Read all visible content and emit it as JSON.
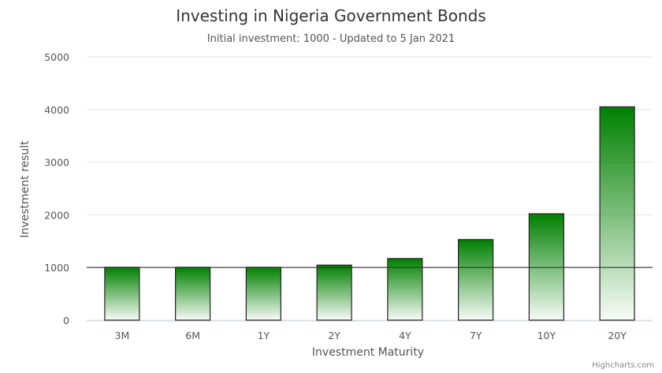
{
  "chart_data": {
    "type": "bar",
    "title": "Investing in Nigeria Government Bonds",
    "subtitle": "Initial investment: 1000 - Updated to 5 Jan 2021",
    "xlabel": "Investment Maturity",
    "ylabel": "Investment result",
    "categories": [
      "3M",
      "6M",
      "1Y",
      "2Y",
      "4Y",
      "7Y",
      "10Y",
      "20Y"
    ],
    "values": [
      1005,
      1005,
      1005,
      1045,
      1170,
      1530,
      2020,
      4050
    ],
    "ylim": [
      0,
      5000
    ],
    "yticks": [
      0,
      1000,
      2000,
      3000,
      4000,
      5000
    ],
    "reference_line": 1000,
    "grid": true,
    "legend": "none",
    "bar_color": "#008000",
    "credits": "Highcharts.com"
  }
}
